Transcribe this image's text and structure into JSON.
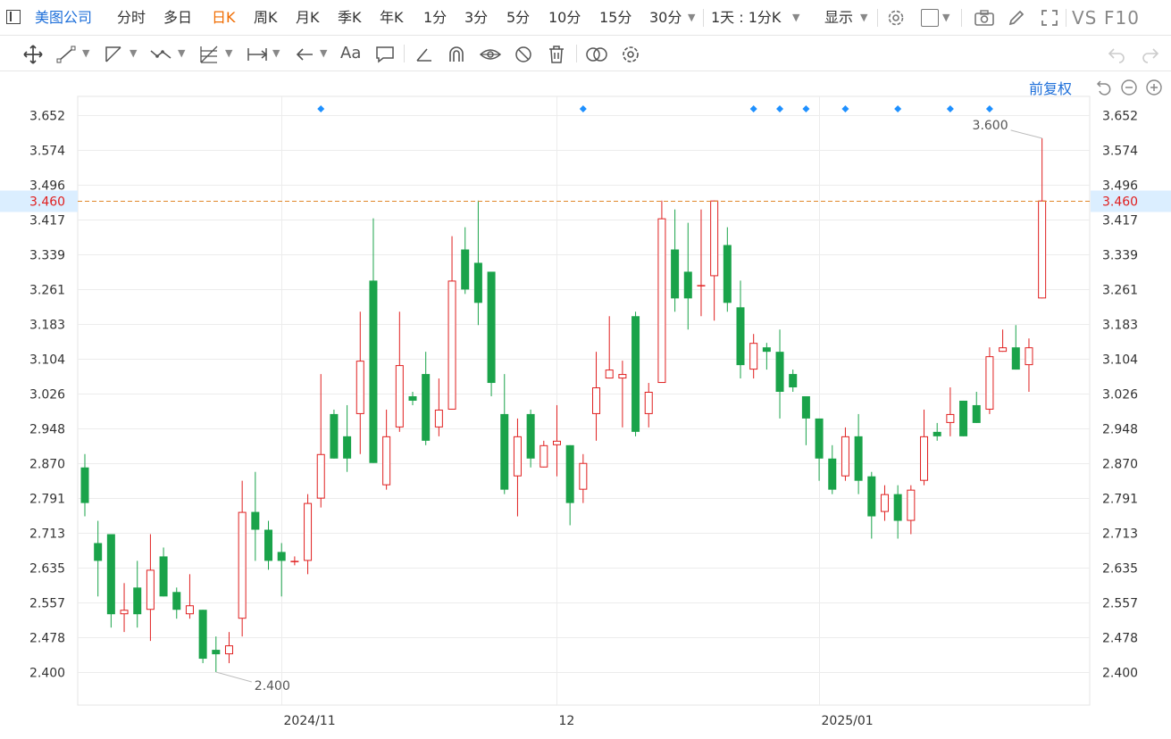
{
  "toolbar": {
    "stock_name": "美图公司",
    "periods": [
      {
        "label": "分时"
      },
      {
        "label": "多日"
      },
      {
        "label": "日K",
        "active": true
      },
      {
        "label": "周K"
      },
      {
        "label": "月K"
      },
      {
        "label": "季K"
      },
      {
        "label": "年K"
      },
      {
        "label": "1分"
      },
      {
        "label": "3分"
      },
      {
        "label": "5分"
      },
      {
        "label": "10分"
      },
      {
        "label": "15分"
      },
      {
        "label": "30分"
      }
    ],
    "multi_period": "1天 : 1分K",
    "display": "显示",
    "vs": "VS",
    "f10": "F10"
  },
  "drawing_tools": {
    "text_tool": "Aa",
    "icons": [
      "move-icon",
      "line-icon",
      "channel-icon",
      "wave-icon",
      "fib-icon",
      "range-icon",
      "arrow-icon",
      "text-icon",
      "comment-icon",
      "ruler-icon",
      "magnet-icon",
      "eye-icon",
      "hide-icon",
      "trash-icon",
      "overlay-icon",
      "settings-icon",
      "undo-icon",
      "redo-icon"
    ]
  },
  "adjust_label": "前复权",
  "chart_data": {
    "type": "candlestick",
    "y_ticks": [
      "3.652",
      "3.574",
      "3.496",
      "3.417",
      "3.339",
      "3.261",
      "3.183",
      "3.104",
      "3.026",
      "2.948",
      "2.870",
      "2.791",
      "2.713",
      "2.635",
      "2.557",
      "2.478",
      "2.400"
    ],
    "ylim": [
      2.4,
      3.652
    ],
    "x_labels": [
      {
        "label": "2024/11",
        "index": 15
      },
      {
        "label": "12",
        "index": 36
      },
      {
        "label": "2025/01",
        "index": 56
      }
    ],
    "current_price": "3.460",
    "max_label": "3.600",
    "min_label": "2.400",
    "event_marker_indices": [
      18,
      38,
      51,
      53,
      55,
      58,
      62,
      66,
      69
    ],
    "candles": [
      {
        "o": 2.86,
        "h": 2.89,
        "l": 2.75,
        "c": 2.78
      },
      {
        "o": 2.69,
        "h": 2.74,
        "l": 2.57,
        "c": 2.65
      },
      {
        "o": 2.71,
        "h": 2.71,
        "l": 2.5,
        "c": 2.53
      },
      {
        "o": 2.53,
        "h": 2.6,
        "l": 2.49,
        "c": 2.54
      },
      {
        "o": 2.59,
        "h": 2.65,
        "l": 2.5,
        "c": 2.53
      },
      {
        "o": 2.54,
        "h": 2.71,
        "l": 2.47,
        "c": 2.63
      },
      {
        "o": 2.66,
        "h": 2.68,
        "l": 2.57,
        "c": 2.57
      },
      {
        "o": 2.58,
        "h": 2.59,
        "l": 2.52,
        "c": 2.54
      },
      {
        "o": 2.53,
        "h": 2.62,
        "l": 2.52,
        "c": 2.55
      },
      {
        "o": 2.54,
        "h": 2.54,
        "l": 2.42,
        "c": 2.43
      },
      {
        "o": 2.45,
        "h": 2.48,
        "l": 2.4,
        "c": 2.44
      },
      {
        "o": 2.44,
        "h": 2.49,
        "l": 2.42,
        "c": 2.46
      },
      {
        "o": 2.52,
        "h": 2.83,
        "l": 2.48,
        "c": 2.76
      },
      {
        "o": 2.76,
        "h": 2.85,
        "l": 2.65,
        "c": 2.72
      },
      {
        "o": 2.72,
        "h": 2.74,
        "l": 2.63,
        "c": 2.65
      },
      {
        "o": 2.67,
        "h": 2.69,
        "l": 2.57,
        "c": 2.65
      },
      {
        "o": 2.65,
        "h": 2.66,
        "l": 2.64,
        "c": 2.65
      },
      {
        "o": 2.65,
        "h": 2.8,
        "l": 2.62,
        "c": 2.78
      },
      {
        "o": 2.79,
        "h": 3.07,
        "l": 2.77,
        "c": 2.89
      },
      {
        "o": 2.98,
        "h": 2.99,
        "l": 2.88,
        "c": 2.88
      },
      {
        "o": 2.93,
        "h": 3.0,
        "l": 2.85,
        "c": 2.88
      },
      {
        "o": 2.98,
        "h": 3.21,
        "l": 2.89,
        "c": 3.1
      },
      {
        "o": 3.28,
        "h": 3.42,
        "l": 2.87,
        "c": 2.87
      },
      {
        "o": 2.82,
        "h": 2.99,
        "l": 2.81,
        "c": 2.93
      },
      {
        "o": 2.95,
        "h": 3.21,
        "l": 2.94,
        "c": 3.09
      },
      {
        "o": 3.02,
        "h": 3.03,
        "l": 3.0,
        "c": 3.01
      },
      {
        "o": 3.07,
        "h": 3.12,
        "l": 2.91,
        "c": 2.92
      },
      {
        "o": 2.95,
        "h": 3.06,
        "l": 2.93,
        "c": 2.99
      },
      {
        "o": 2.99,
        "h": 3.38,
        "l": 2.99,
        "c": 3.28
      },
      {
        "o": 3.35,
        "h": 3.4,
        "l": 3.25,
        "c": 3.26
      },
      {
        "o": 3.32,
        "h": 3.46,
        "l": 3.18,
        "c": 3.23
      },
      {
        "o": 3.3,
        "h": 3.3,
        "l": 3.02,
        "c": 3.05
      },
      {
        "o": 2.98,
        "h": 3.07,
        "l": 2.8,
        "c": 2.81
      },
      {
        "o": 2.84,
        "h": 2.97,
        "l": 2.75,
        "c": 2.93
      },
      {
        "o": 2.98,
        "h": 2.99,
        "l": 2.86,
        "c": 2.88
      },
      {
        "o": 2.86,
        "h": 2.92,
        "l": 2.86,
        "c": 2.91
      },
      {
        "o": 2.91,
        "h": 3.0,
        "l": 2.84,
        "c": 2.92
      },
      {
        "o": 2.91,
        "h": 2.91,
        "l": 2.73,
        "c": 2.78
      },
      {
        "o": 2.81,
        "h": 2.89,
        "l": 2.78,
        "c": 2.87
      },
      {
        "o": 2.98,
        "h": 3.12,
        "l": 2.92,
        "c": 3.04
      },
      {
        "o": 3.06,
        "h": 3.2,
        "l": 3.06,
        "c": 3.08
      },
      {
        "o": 3.06,
        "h": 3.1,
        "l": 2.95,
        "c": 3.07
      },
      {
        "o": 3.2,
        "h": 3.21,
        "l": 2.93,
        "c": 2.94
      },
      {
        "o": 2.98,
        "h": 3.05,
        "l": 2.95,
        "c": 3.03
      },
      {
        "o": 3.05,
        "h": 3.46,
        "l": 3.05,
        "c": 3.42
      },
      {
        "o": 3.35,
        "h": 3.44,
        "l": 3.21,
        "c": 3.24
      },
      {
        "o": 3.3,
        "h": 3.41,
        "l": 3.17,
        "c": 3.24
      },
      {
        "o": 3.27,
        "h": 3.44,
        "l": 3.2,
        "c": 3.27
      },
      {
        "o": 3.29,
        "h": 3.46,
        "l": 3.19,
        "c": 3.46
      },
      {
        "o": 3.36,
        "h": 3.4,
        "l": 3.21,
        "c": 3.23
      },
      {
        "o": 3.22,
        "h": 3.28,
        "l": 3.06,
        "c": 3.09
      },
      {
        "o": 3.08,
        "h": 3.16,
        "l": 3.06,
        "c": 3.14
      },
      {
        "o": 3.13,
        "h": 3.14,
        "l": 3.08,
        "c": 3.12
      },
      {
        "o": 3.12,
        "h": 3.17,
        "l": 2.97,
        "c": 3.03
      },
      {
        "o": 3.07,
        "h": 3.08,
        "l": 3.03,
        "c": 3.04
      },
      {
        "o": 3.02,
        "h": 3.02,
        "l": 2.91,
        "c": 2.97
      },
      {
        "o": 2.97,
        "h": 2.97,
        "l": 2.83,
        "c": 2.88
      },
      {
        "o": 2.88,
        "h": 2.91,
        "l": 2.8,
        "c": 2.81
      },
      {
        "o": 2.84,
        "h": 2.95,
        "l": 2.83,
        "c": 2.93
      },
      {
        "o": 2.93,
        "h": 2.98,
        "l": 2.8,
        "c": 2.83
      },
      {
        "o": 2.84,
        "h": 2.85,
        "l": 2.7,
        "c": 2.75
      },
      {
        "o": 2.76,
        "h": 2.82,
        "l": 2.74,
        "c": 2.8
      },
      {
        "o": 2.8,
        "h": 2.82,
        "l": 2.7,
        "c": 2.74
      },
      {
        "o": 2.74,
        "h": 2.82,
        "l": 2.71,
        "c": 2.81
      },
      {
        "o": 2.83,
        "h": 2.99,
        "l": 2.82,
        "c": 2.93
      },
      {
        "o": 2.94,
        "h": 2.96,
        "l": 2.92,
        "c": 2.93
      },
      {
        "o": 2.96,
        "h": 3.04,
        "l": 2.93,
        "c": 2.98
      },
      {
        "o": 3.01,
        "h": 3.01,
        "l": 2.93,
        "c": 2.93
      },
      {
        "o": 3.0,
        "h": 3.03,
        "l": 2.96,
        "c": 2.96
      },
      {
        "o": 2.99,
        "h": 3.13,
        "l": 2.98,
        "c": 3.11
      },
      {
        "o": 3.12,
        "h": 3.17,
        "l": 3.12,
        "c": 3.13
      },
      {
        "o": 3.13,
        "h": 3.18,
        "l": 3.08,
        "c": 3.08
      },
      {
        "o": 3.09,
        "h": 3.15,
        "l": 3.03,
        "c": 3.13
      },
      {
        "o": 3.24,
        "h": 3.6,
        "l": 3.24,
        "c": 3.46
      }
    ],
    "colors": {
      "up": "#e02020",
      "down": "#1aa34a",
      "current": "#e0882a",
      "grid": "#ececec",
      "marker": "#1e90ff"
    }
  }
}
